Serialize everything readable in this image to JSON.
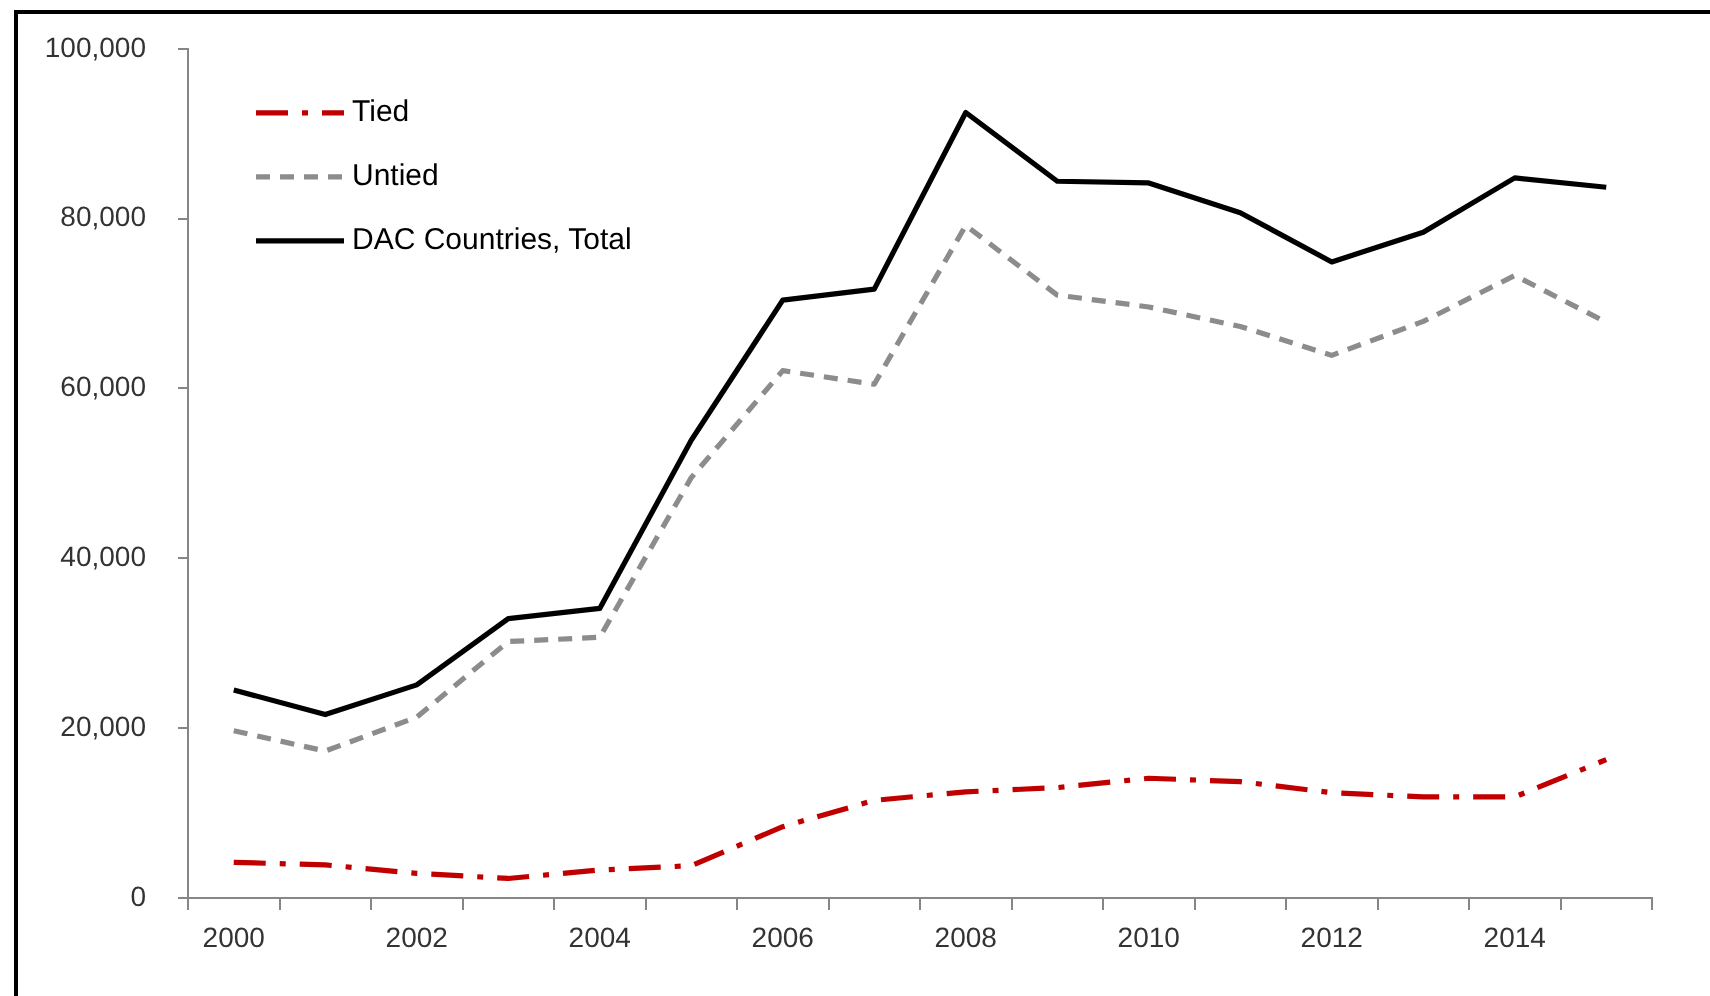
{
  "chart_data": {
    "type": "line",
    "categories": [
      "2000",
      null,
      "2002",
      null,
      "2004",
      null,
      "2006",
      null,
      "2008",
      null,
      "2010",
      null,
      "2012",
      null,
      "2014",
      null
    ],
    "series": [
      {
        "name": "Tied",
        "color": "#c00000",
        "line_style": "dashdot",
        "values": [
          4200,
          3900,
          2900,
          2300,
          3300,
          3800,
          8400,
          11500,
          12500,
          13000,
          14100,
          13700,
          12400,
          11900,
          11900,
          16300
        ]
      },
      {
        "name": "Untied",
        "color": "#8c8c8c",
        "line_style": "dashed",
        "values": [
          19700,
          17300,
          21300,
          30200,
          30700,
          49500,
          62100,
          60500,
          79200,
          71000,
          69600,
          67300,
          63900,
          67900,
          73300,
          67800
        ]
      },
      {
        "name": "DAC Countries, Total",
        "color": "#000000",
        "line_style": "solid",
        "values": [
          24500,
          21600,
          25100,
          32900,
          34100,
          53900,
          70400,
          71700,
          92500,
          84400,
          84200,
          80700,
          74900,
          78400,
          84800,
          83700
        ]
      }
    ],
    "ylim": [
      0,
      100000
    ],
    "yticks": [
      0,
      {
        "value": 20000,
        "label": "20,000"
      },
      {
        "value": 40000,
        "label": "40,000"
      },
      {
        "value": 60000,
        "label": "60,000"
      },
      {
        "value": 80000,
        "label": "80,000"
      },
      {
        "value": 100000,
        "label": "100,000"
      }
    ],
    "grid": false,
    "legend": "top left",
    "marker": "none"
  }
}
